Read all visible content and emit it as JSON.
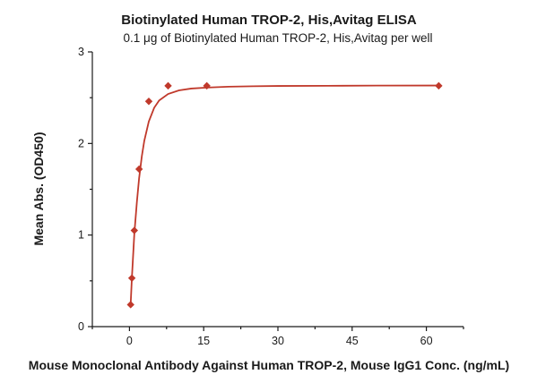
{
  "chart_data": {
    "type": "scatter",
    "title": "Biotinylated Human TROP-2, His,Avitag ELISA",
    "subtitle": "0.1 μg of Biotinylated Human TROP-2, His,Avitag per well",
    "xlabel": "Mouse Monoclonal Antibody Against Human TROP-2, Mouse IgG1 Conc. (ng/mL)",
    "ylabel": "Mean Abs. (OD450)",
    "xlim": [
      -7.5,
      67.5
    ],
    "ylim": [
      0,
      3
    ],
    "xticks": [
      0,
      15,
      30,
      45,
      60
    ],
    "yticks": [
      0,
      1,
      2,
      3
    ],
    "grid": false,
    "legend": "none",
    "series": [
      {
        "color": "#c0392b",
        "marker": "diamond",
        "x": [
          0.24,
          0.49,
          0.98,
          1.95,
          3.91,
          7.81,
          15.63,
          62.5
        ],
        "y": [
          0.24,
          0.53,
          1.05,
          1.72,
          2.46,
          2.63,
          2.63,
          2.63
        ]
      }
    ],
    "fit_curve": {
      "color": "#c0392b",
      "x": [
        0.24,
        0.49,
        0.98,
        1.5,
        1.95,
        2.5,
        3.0,
        3.91,
        5.0,
        6.0,
        7.81,
        10.0,
        12.5,
        15.63,
        20.0,
        25.0,
        30.0,
        40.0,
        50.0,
        62.5
      ],
      "y": [
        0.24,
        0.53,
        1.01,
        1.36,
        1.62,
        1.86,
        2.03,
        2.24,
        2.39,
        2.47,
        2.54,
        2.58,
        2.6,
        2.61,
        2.62,
        2.625,
        2.628,
        2.63,
        2.632,
        2.633
      ]
    }
  }
}
